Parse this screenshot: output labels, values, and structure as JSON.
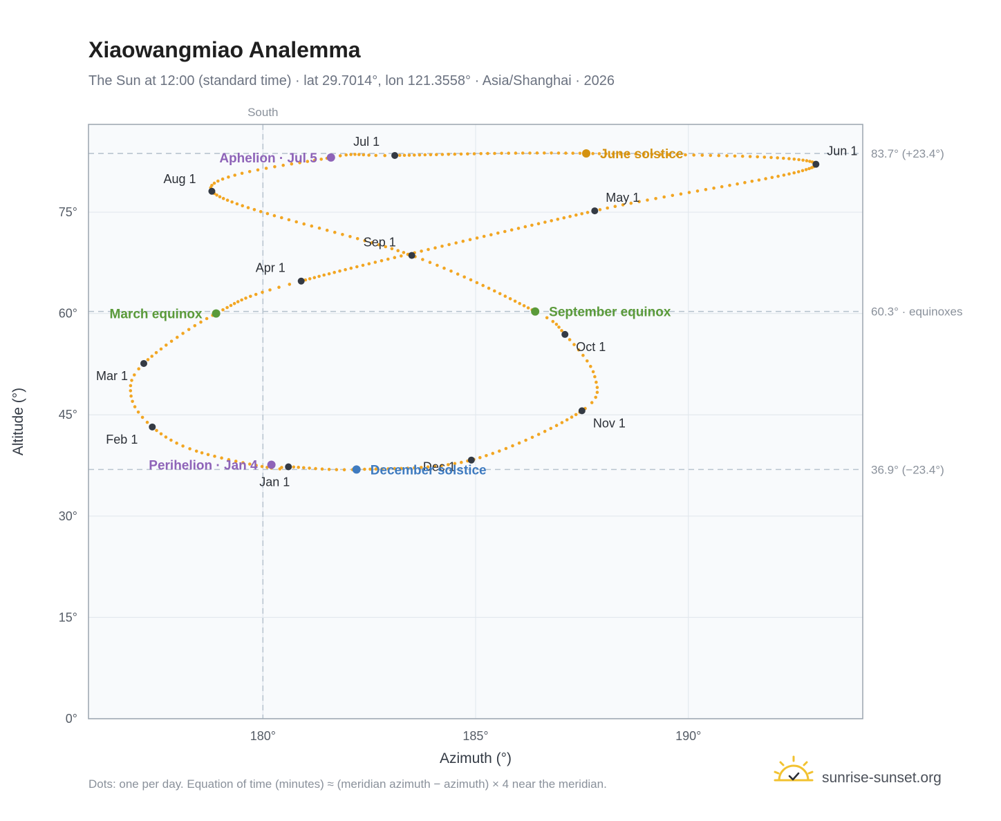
{
  "header": {
    "title": "Xiaowangmiao Analemma",
    "subtitle": "The Sun at 12:00 (standard time) · lat 29.7014°, lon 121.3558° · Asia/Shanghai · 2026"
  },
  "footer": {
    "note": "Dots: one per day. Equation of time (minutes) ≈ (meridian azimuth − azimuth) × 4 near the meridian.",
    "brand": "sunrise-sunset.org",
    "logo_icon": "sun-logo-icon"
  },
  "colors": {
    "path": "#f2a623",
    "month_dot": "#343a44",
    "solstice_june": "#d4920f",
    "equinox": "#5a9a3a",
    "apsis": "#8e63b8",
    "solstice_december": "#3f7bc0",
    "ref_line": "#b8c4cf",
    "grid": "#e3e8ee",
    "plot_bg": "#f8fafc",
    "frame": "#9aa4ae"
  },
  "chart_data": {
    "type": "scatter",
    "xlabel": "Azimuth (°)",
    "ylabel": "Altitude (°)",
    "xlim": [
      175.9,
      194.1
    ],
    "ylim": [
      0,
      88
    ],
    "x_ticks": [
      180,
      185,
      190
    ],
    "x_tick_labels": [
      "180°",
      "185°",
      "190°"
    ],
    "y_ticks": [
      0,
      15,
      30,
      45,
      60,
      75
    ],
    "y_tick_labels": [
      "0°",
      "15°",
      "30°",
      "45°",
      "60°",
      "75°"
    ],
    "grid": true,
    "meridian": {
      "azimuth": 180,
      "label": "South"
    },
    "reference_lines": [
      {
        "altitude": 83.7,
        "label": "83.7° (+23.4°)"
      },
      {
        "altitude": 60.3,
        "label": "60.3° · equinoxes"
      },
      {
        "altitude": 36.9,
        "label": "36.9° (−23.4°)"
      }
    ],
    "month_markers": [
      {
        "label": "Jan 1",
        "azimuth": 180.6,
        "altitude": 37.3
      },
      {
        "label": "Feb 1",
        "azimuth": 177.4,
        "altitude": 43.2
      },
      {
        "label": "Mar 1",
        "azimuth": 177.2,
        "altitude": 52.6
      },
      {
        "label": "Apr 1",
        "azimuth": 180.9,
        "altitude": 64.8
      },
      {
        "label": "May 1",
        "azimuth": 187.8,
        "altitude": 75.2
      },
      {
        "label": "Jun 1",
        "azimuth": 193.0,
        "altitude": 82.1
      },
      {
        "label": "Jul 1",
        "azimuth": 183.1,
        "altitude": 83.4
      },
      {
        "label": "Aug 1",
        "azimuth": 178.8,
        "altitude": 78.1
      },
      {
        "label": "Sep 1",
        "azimuth": 183.5,
        "altitude": 68.6
      },
      {
        "label": "Oct 1",
        "azimuth": 187.1,
        "altitude": 56.9
      },
      {
        "label": "Nov 1",
        "azimuth": 187.5,
        "altitude": 45.6
      },
      {
        "label": "Dec 1",
        "azimuth": 184.9,
        "altitude": 38.3
      }
    ],
    "events": [
      {
        "label": "June solstice",
        "azimuth": 187.6,
        "altitude": 83.7,
        "kind": "solstice_june"
      },
      {
        "label": "March equinox",
        "azimuth": 178.9,
        "altitude": 60.0,
        "kind": "equinox"
      },
      {
        "label": "September equinox",
        "azimuth": 186.4,
        "altitude": 60.3,
        "kind": "equinox"
      },
      {
        "label": "Aphelion · Jul 5",
        "azimuth": 181.6,
        "altitude": 83.1,
        "kind": "apsis"
      },
      {
        "label": "Perihelion · Jan 4",
        "azimuth": 180.2,
        "altitude": 37.6,
        "kind": "apsis"
      },
      {
        "label": "December solstice",
        "azimuth": 182.2,
        "altitude": 36.9,
        "kind": "solstice_december"
      }
    ],
    "daily_path_knots": [
      [
        180.2,
        37.1
      ],
      [
        178.4,
        39.7
      ],
      [
        177.4,
        43.2
      ],
      [
        176.9,
        47.8
      ],
      [
        177.2,
        52.6
      ],
      [
        178.9,
        60.0
      ],
      [
        180.9,
        64.8
      ],
      [
        187.8,
        75.2
      ],
      [
        193.0,
        82.1
      ],
      [
        187.6,
        83.7
      ],
      [
        183.1,
        83.4
      ],
      [
        181.6,
        83.1
      ],
      [
        178.8,
        78.1
      ],
      [
        183.5,
        68.6
      ],
      [
        186.4,
        60.3
      ],
      [
        187.1,
        56.9
      ],
      [
        187.8,
        50.7
      ],
      [
        187.5,
        45.6
      ],
      [
        184.9,
        38.3
      ],
      [
        182.2,
        36.9
      ],
      [
        180.6,
        37.3
      ]
    ]
  }
}
